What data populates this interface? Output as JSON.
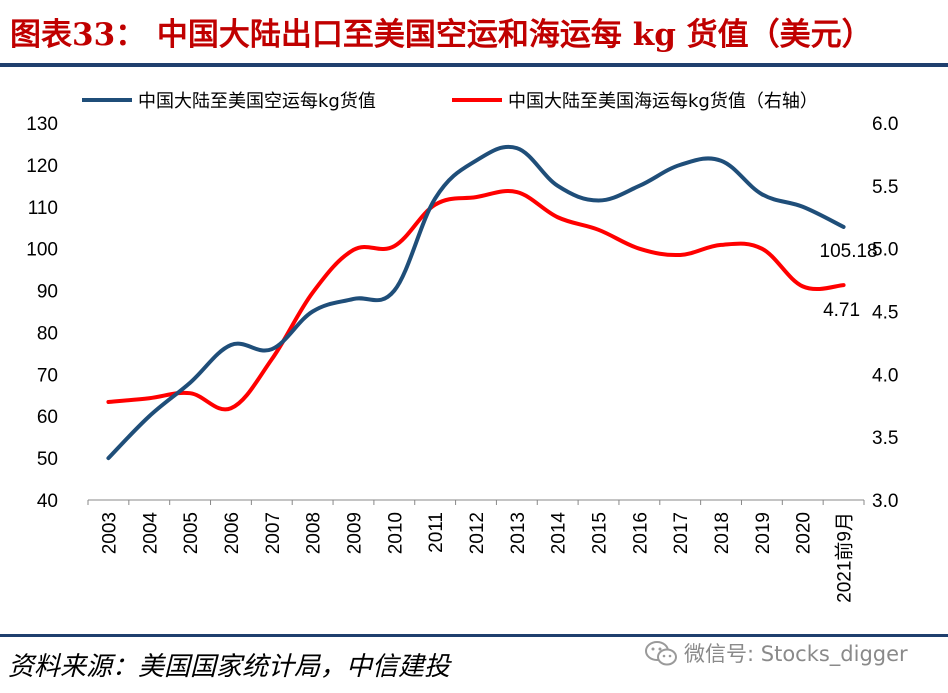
{
  "header": {
    "title": "图表33： 中国大陆出口至美国空运和海运每 kg 货值（美元）"
  },
  "footer": {
    "source": "资料来源：美国国家统计局，中信建投",
    "watermark": "微信号: Stocks_digger",
    "watermark_icon": "wechat-icon"
  },
  "chart_data": {
    "type": "line",
    "title": "图表33： 中国大陆出口至美国空运和海运每 kg 货值（美元）",
    "categories": [
      "2003",
      "2004",
      "2005",
      "2006",
      "2007",
      "2008",
      "2009",
      "2010",
      "2011",
      "2012",
      "2013",
      "2014",
      "2015",
      "2016",
      "2017",
      "2018",
      "2019",
      "2020",
      "2021前9月"
    ],
    "series": [
      {
        "name": "中国大陆至美国空运每kg货值",
        "axis": "left",
        "color": "#1f4e79",
        "values": [
          50,
          60,
          68,
          77,
          76,
          85,
          88,
          90,
          112,
          121,
          124,
          115,
          111.5,
          115,
          120,
          121,
          113,
          110,
          105.18
        ]
      },
      {
        "name": "中国大陆至美国海运每kg货值（右轴）",
        "axis": "right",
        "color": "#ff0000",
        "values": [
          3.78,
          3.81,
          3.85,
          3.73,
          4.12,
          4.65,
          4.99,
          5.02,
          5.35,
          5.41,
          5.45,
          5.25,
          5.15,
          5.0,
          4.95,
          5.03,
          5.0,
          4.7,
          4.71
        ]
      }
    ],
    "y_left": {
      "min": 40,
      "max": 130,
      "ticks": [
        40,
        50,
        60,
        70,
        80,
        90,
        100,
        110,
        120,
        130
      ]
    },
    "y_right": {
      "min": 3.0,
      "max": 6.0,
      "ticks": [
        "3.0",
        "3.5",
        "4.0",
        "4.5",
        "5.0",
        "5.5",
        "6.0"
      ]
    },
    "annotations": [
      {
        "series": 0,
        "text": "105.18"
      },
      {
        "series": 1,
        "text": "4.71"
      }
    ],
    "legend": "top",
    "grid": false
  }
}
